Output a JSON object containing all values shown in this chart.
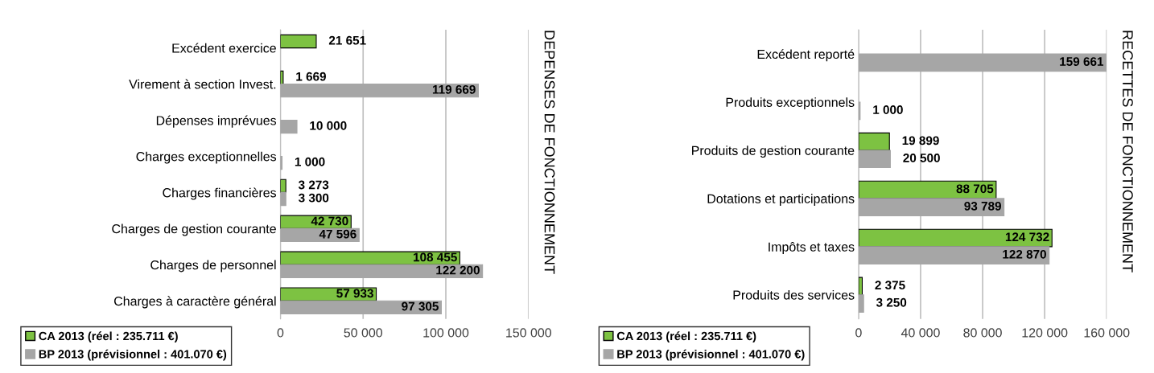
{
  "chart_data": [
    {
      "type": "bar",
      "orientation": "horizontal",
      "y2label": "DEPENSES DE FONCTIONNEMENT",
      "categories": [
        "Excédent exercice",
        "Virement à section Invest.",
        "Dépenses imprévues",
        "Charges exceptionnelles",
        "Charges financières",
        "Charges de gestion courante",
        "Charges de personnel",
        "Charges à caractère général"
      ],
      "series": [
        {
          "name": "CA 2013 (réel : 235.711 €)",
          "color": "#7dc242",
          "values": [
            21651,
            1669,
            null,
            null,
            3273,
            42730,
            108455,
            57933
          ],
          "value_labels": [
            "21 651",
            "1 669",
            null,
            null,
            "3 273",
            "42 730",
            "108 455",
            "57 933"
          ]
        },
        {
          "name": "BP 2013 (prévisionnel : 401.070 €)",
          "color": "#a6a6a6",
          "values": [
            null,
            119669,
            10000,
            1000,
            3300,
            47596,
            122200,
            97305
          ],
          "value_labels": [
            null,
            "119 669",
            "10 000",
            "1 000",
            "3 300",
            "47 596",
            "122 200",
            "97 305"
          ]
        }
      ],
      "xlim": [
        0,
        150000
      ],
      "xticks": [
        0,
        {
          "value": 50000,
          "label": "50 000"
        },
        {
          "value": 100000,
          "label": "100 000"
        },
        {
          "value": 150000,
          "label": "150 000"
        }
      ],
      "grid": "x",
      "legend": "bottom left"
    },
    {
      "type": "bar",
      "orientation": "horizontal",
      "y2label": "RECETTES DE FONCTIONNEMENT",
      "categories": [
        "Excédent reporté",
        "Produits exceptionnels",
        "Produits de gestion courante",
        "Dotations et participations",
        "Impôts et taxes",
        "Produits des services"
      ],
      "series": [
        {
          "name": "CA 2013 (réel : 235.711 €)",
          "color": "#7dc242",
          "values": [
            null,
            null,
            19899,
            88705,
            124732,
            2375
          ],
          "value_labels": [
            null,
            null,
            "19 899",
            "88 705",
            "124 732",
            "2 375"
          ]
        },
        {
          "name": "BP 2013 (prévisionnel : 401.070 €)",
          "color": "#a6a6a6",
          "values": [
            159661,
            1000,
            20500,
            93789,
            122870,
            3250
          ],
          "value_labels": [
            "159 661",
            "1 000",
            "20 500",
            "93 789",
            "122 870",
            "3 250"
          ]
        }
      ],
      "xlim": [
        0,
        160000
      ],
      "xticks": [
        0,
        {
          "value": 40000,
          "label": "40 000"
        },
        {
          "value": 80000,
          "label": "80 000"
        },
        {
          "value": 120000,
          "label": "120 000"
        },
        {
          "value": 160000,
          "label": "160 000"
        }
      ],
      "grid": "x",
      "legend": "bottom left"
    }
  ]
}
